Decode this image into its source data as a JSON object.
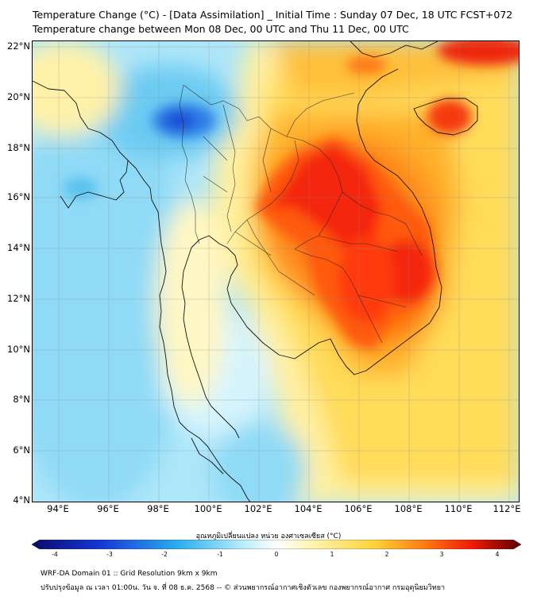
{
  "header": {
    "title_line1": "Temperature Change (°C) - [Data Assimilation] _ Initial Time : Sunday 07 Dec, 18 UTC FCST+072",
    "title_line2": "Temperature change between Mon 08 Dec, 00 UTC and Thu 11 Dec, 00 UTC"
  },
  "axes": {
    "lat_labels": [
      "22°N",
      "20°N",
      "18°N",
      "16°N",
      "14°N",
      "12°N",
      "10°N",
      "8°N",
      "6°N",
      "4°N"
    ],
    "lon_labels": [
      "94°E",
      "96°E",
      "98°E",
      "100°E",
      "102°E",
      "104°E",
      "106°E",
      "108°E",
      "110°E",
      "112°E"
    ]
  },
  "colorbar": {
    "title": "อุณหภูมิเปลี่ยนแปลง หน่วย องศาเซลเซียส (°C)",
    "ticks": [
      "-4",
      "-3",
      "-2",
      "-1",
      "0",
      "1",
      "2",
      "3",
      "4"
    ],
    "colors": {
      "min": "#0a0a6e",
      "strong_cool": "#1537d6",
      "cool": "#2aaef0",
      "light_cool": "#b7ecfb",
      "neutral": "#ffffff",
      "light_warm": "#fff6b0",
      "warm": "#ffd23a",
      "strong_warm": "#ff7d12",
      "hot": "#f01a08",
      "max": "#5a0000"
    }
  },
  "footer": {
    "line1": "WRF-DA Domain 01 :: Grid Resolution 9km x 9km",
    "line2": "ปรับปรุงข้อมูล ณ เวลา 01:00น. วัน จ. ที่ 08 ธ.ค. 2568 -- © ส่วนพยากรณ์อากาศเชิงตัวเลข กองพยากรณ์อากาศ กรมอุตุนิยมวิทยา"
  }
}
